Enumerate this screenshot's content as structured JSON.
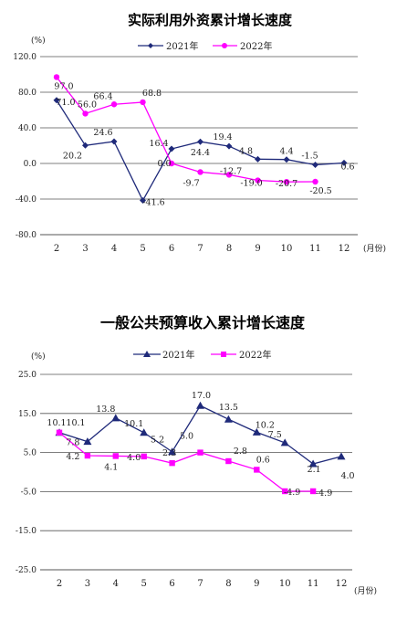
{
  "chart_data": [
    {
      "type": "line",
      "title": "实际利用外资累计增长速度",
      "ylabel": "(%)",
      "xlabel": "(月份)",
      "ylim": [
        -80,
        120
      ],
      "yticks": [
        -80.0,
        -40.0,
        0.0,
        40.0,
        80.0,
        120.0
      ],
      "ytick_labels": [
        "-80.0",
        "-40.0",
        "0.0",
        "40.0",
        "80.0",
        "120.0"
      ],
      "categories": [
        "2",
        "3",
        "4",
        "5",
        "6",
        "7",
        "8",
        "9",
        "10",
        "11",
        "12"
      ],
      "grid": true,
      "legend": "top-center",
      "series": [
        {
          "name": "2021年",
          "color": "#1f2a7a",
          "marker": "diamond",
          "values": [
            71.0,
            20.2,
            24.6,
            -41.6,
            16.4,
            24.4,
            19.4,
            4.8,
            4.4,
            -1.5,
            0.6
          ],
          "labels": [
            "71.0",
            "20.2",
            "24.6",
            "-41.6",
            "16.4",
            "24.4",
            "19.4",
            "4.8",
            "4.4",
            "-1.5",
            "0.6"
          ]
        },
        {
          "name": "2022年",
          "color": "#ff00ff",
          "marker": "circle",
          "values": [
            97.0,
            56.0,
            66.4,
            68.8,
            0.0,
            -9.7,
            -12.7,
            -19.0,
            -20.7,
            -20.5,
            null
          ],
          "labels": [
            "97.0",
            "56.0",
            "66.4",
            "68.8",
            "0.0",
            "-9.7",
            "-12.7",
            "-19.0",
            "-20.7",
            "-20.5",
            null
          ]
        }
      ]
    },
    {
      "type": "line",
      "title": "一般公共预算收入累计增长速度",
      "ylabel": "(%)",
      "xlabel": "(月份)",
      "ylim": [
        -25,
        25
      ],
      "yticks": [
        -25.0,
        -15.0,
        -5.0,
        5.0,
        15.0,
        25.0
      ],
      "ytick_labels": [
        "-25.0",
        "-15.0",
        "-5.0",
        "5.0",
        "15.0",
        "25.0"
      ],
      "categories": [
        "2",
        "3",
        "4",
        "5",
        "6",
        "7",
        "8",
        "9",
        "10",
        "11",
        "12"
      ],
      "grid": true,
      "legend": "top-center",
      "series": [
        {
          "name": "2021年",
          "color": "#1f2a7a",
          "marker": "triangle",
          "values": [
            10.1,
            7.8,
            13.8,
            10.1,
            5.2,
            17.0,
            13.5,
            10.2,
            7.5,
            2.1,
            4.0
          ],
          "labels": [
            "10.1",
            "7.8",
            "13.8",
            "10.1",
            "5.2",
            "17.0",
            "13.5",
            "10.2",
            "7.5",
            "2.1",
            "4.0"
          ]
        },
        {
          "name": "2022年",
          "color": "#ff00ff",
          "marker": "square",
          "values": [
            10.1,
            4.2,
            4.1,
            4.0,
            2.3,
            5.0,
            2.8,
            0.6,
            -4.9,
            -4.9,
            null
          ],
          "labels": [
            "10.1",
            "4.2",
            "4.1",
            "4.0",
            "2.3",
            "5.0",
            "2.8",
            "0.6",
            "-4.9",
            "-4.9",
            null
          ]
        }
      ]
    }
  ]
}
